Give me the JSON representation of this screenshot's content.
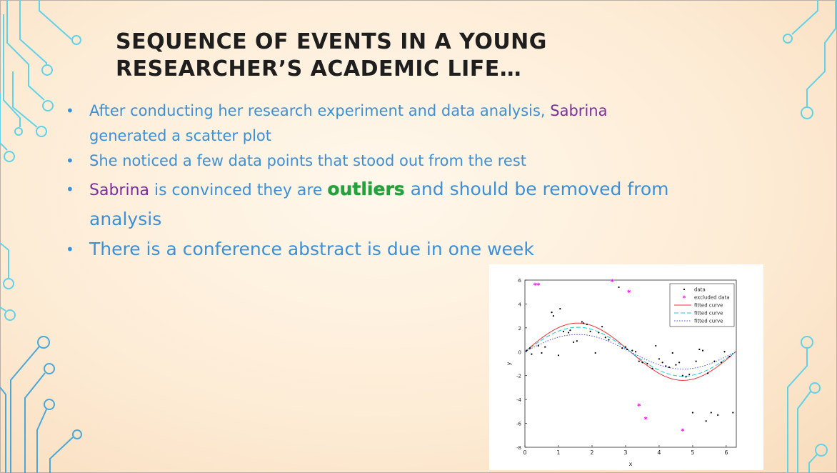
{
  "slide": {
    "title_line1": "SEQUENCE OF EVENTS IN A YOUNG",
    "title_line2": "RESEARCHER’S ACADEMIC LIFE…",
    "bullet1_a": "After conducting her research experiment and data analysis, ",
    "bullet1_name": "Sabrina",
    "bullet1_b": "generated a scatter plot",
    "bullet2": "She noticed a few data points that stood out from the rest",
    "bullet3_name": "Sabrina",
    "bullet3_a": " is convinced they are ",
    "bullet3_outliers": "outliers",
    "bullet3_b": " and should be removed from",
    "bullet3_c": "analysis",
    "bullet4": "There is a conference abstract is due in one week",
    "bullet_glyph": "•",
    "colors": {
      "bullet_text": "#3d8fd6",
      "name": "#7b2f9a",
      "outliers": "#22a23a",
      "deco": "#5fd3e8"
    }
  },
  "chart_data": {
    "type": "scatter",
    "xlabel": "x",
    "ylabel": "y",
    "xlim": [
      0,
      6.3
    ],
    "ylim": [
      -8,
      6
    ],
    "xticks": [
      "0",
      "1",
      "2",
      "3",
      "4",
      "5",
      "6"
    ],
    "yticks": [
      "-8",
      "-6",
      "-4",
      "-2",
      "0",
      "2",
      "4",
      "6"
    ],
    "legend_position": "top-right",
    "legend": [
      "data",
      "excluded data",
      "fitted curve",
      "fitted curve",
      "fitted curve"
    ],
    "series": [
      {
        "name": "data",
        "marker": "dot",
        "color": "#000000",
        "points": [
          [
            0.05,
            0.1
          ],
          [
            0.15,
            0.3
          ],
          [
            0.2,
            -0.2
          ],
          [
            0.4,
            0.5
          ],
          [
            0.5,
            -0.1
          ],
          [
            0.6,
            0.4
          ],
          [
            0.8,
            3.3
          ],
          [
            0.85,
            3.0
          ],
          [
            1.0,
            -0.3
          ],
          [
            1.05,
            3.6
          ],
          [
            1.15,
            1.7
          ],
          [
            1.3,
            1.6
          ],
          [
            1.35,
            1.8
          ],
          [
            1.45,
            0.8
          ],
          [
            1.55,
            0.9
          ],
          [
            1.7,
            2.5
          ],
          [
            1.75,
            2.4
          ],
          [
            1.85,
            2.3
          ],
          [
            1.95,
            1.7
          ],
          [
            2.1,
            -0.1
          ],
          [
            2.2,
            1.6
          ],
          [
            2.3,
            2.1
          ],
          [
            2.4,
            1.2
          ],
          [
            2.5,
            1.0
          ],
          [
            2.8,
            5.4
          ],
          [
            2.9,
            0.3
          ],
          [
            3.0,
            0.4
          ],
          [
            3.05,
            0.2
          ],
          [
            3.2,
            0.1
          ],
          [
            3.3,
            0.0
          ],
          [
            3.4,
            -0.8
          ],
          [
            3.5,
            -0.9
          ],
          [
            3.65,
            -1.0
          ],
          [
            3.8,
            -1.4
          ],
          [
            3.9,
            0.5
          ],
          [
            4.0,
            -0.6
          ],
          [
            4.1,
            -0.9
          ],
          [
            4.2,
            -1.2
          ],
          [
            4.3,
            -1.3
          ],
          [
            4.4,
            -0.1
          ],
          [
            4.5,
            -1.1
          ],
          [
            4.6,
            -0.9
          ],
          [
            4.7,
            -2.0
          ],
          [
            4.8,
            -2.1
          ],
          [
            4.9,
            -1.9
          ],
          [
            5.0,
            -5.1
          ],
          [
            5.1,
            -0.8
          ],
          [
            5.2,
            0.2
          ],
          [
            5.3,
            0.1
          ],
          [
            5.4,
            -5.8
          ],
          [
            5.45,
            -1.8
          ],
          [
            5.55,
            -5.1
          ],
          [
            5.65,
            -0.8
          ],
          [
            5.75,
            -5.3
          ],
          [
            5.85,
            -0.9
          ],
          [
            5.95,
            0.0
          ],
          [
            6.1,
            -0.4
          ],
          [
            6.2,
            -5.1
          ]
        ]
      },
      {
        "name": "excluded data",
        "marker": "asterisk",
        "color": "#ff00ff",
        "points": [
          [
            0.3,
            5.6
          ],
          [
            0.4,
            5.6
          ],
          [
            2.6,
            5.9
          ],
          [
            3.1,
            5.0
          ],
          [
            3.4,
            -4.5
          ],
          [
            3.6,
            -5.6
          ],
          [
            4.7,
            -6.6
          ]
        ]
      },
      {
        "name": "fitted curve",
        "style": "solid",
        "color": "#e8353a",
        "amplitude": 2.4
      },
      {
        "name": "fitted curve",
        "style": "dashed",
        "color": "#22c9d6",
        "amplitude": 2.05
      },
      {
        "name": "fitted curve",
        "style": "dotted",
        "color": "#4a4fe0",
        "amplitude": 1.45
      }
    ]
  }
}
